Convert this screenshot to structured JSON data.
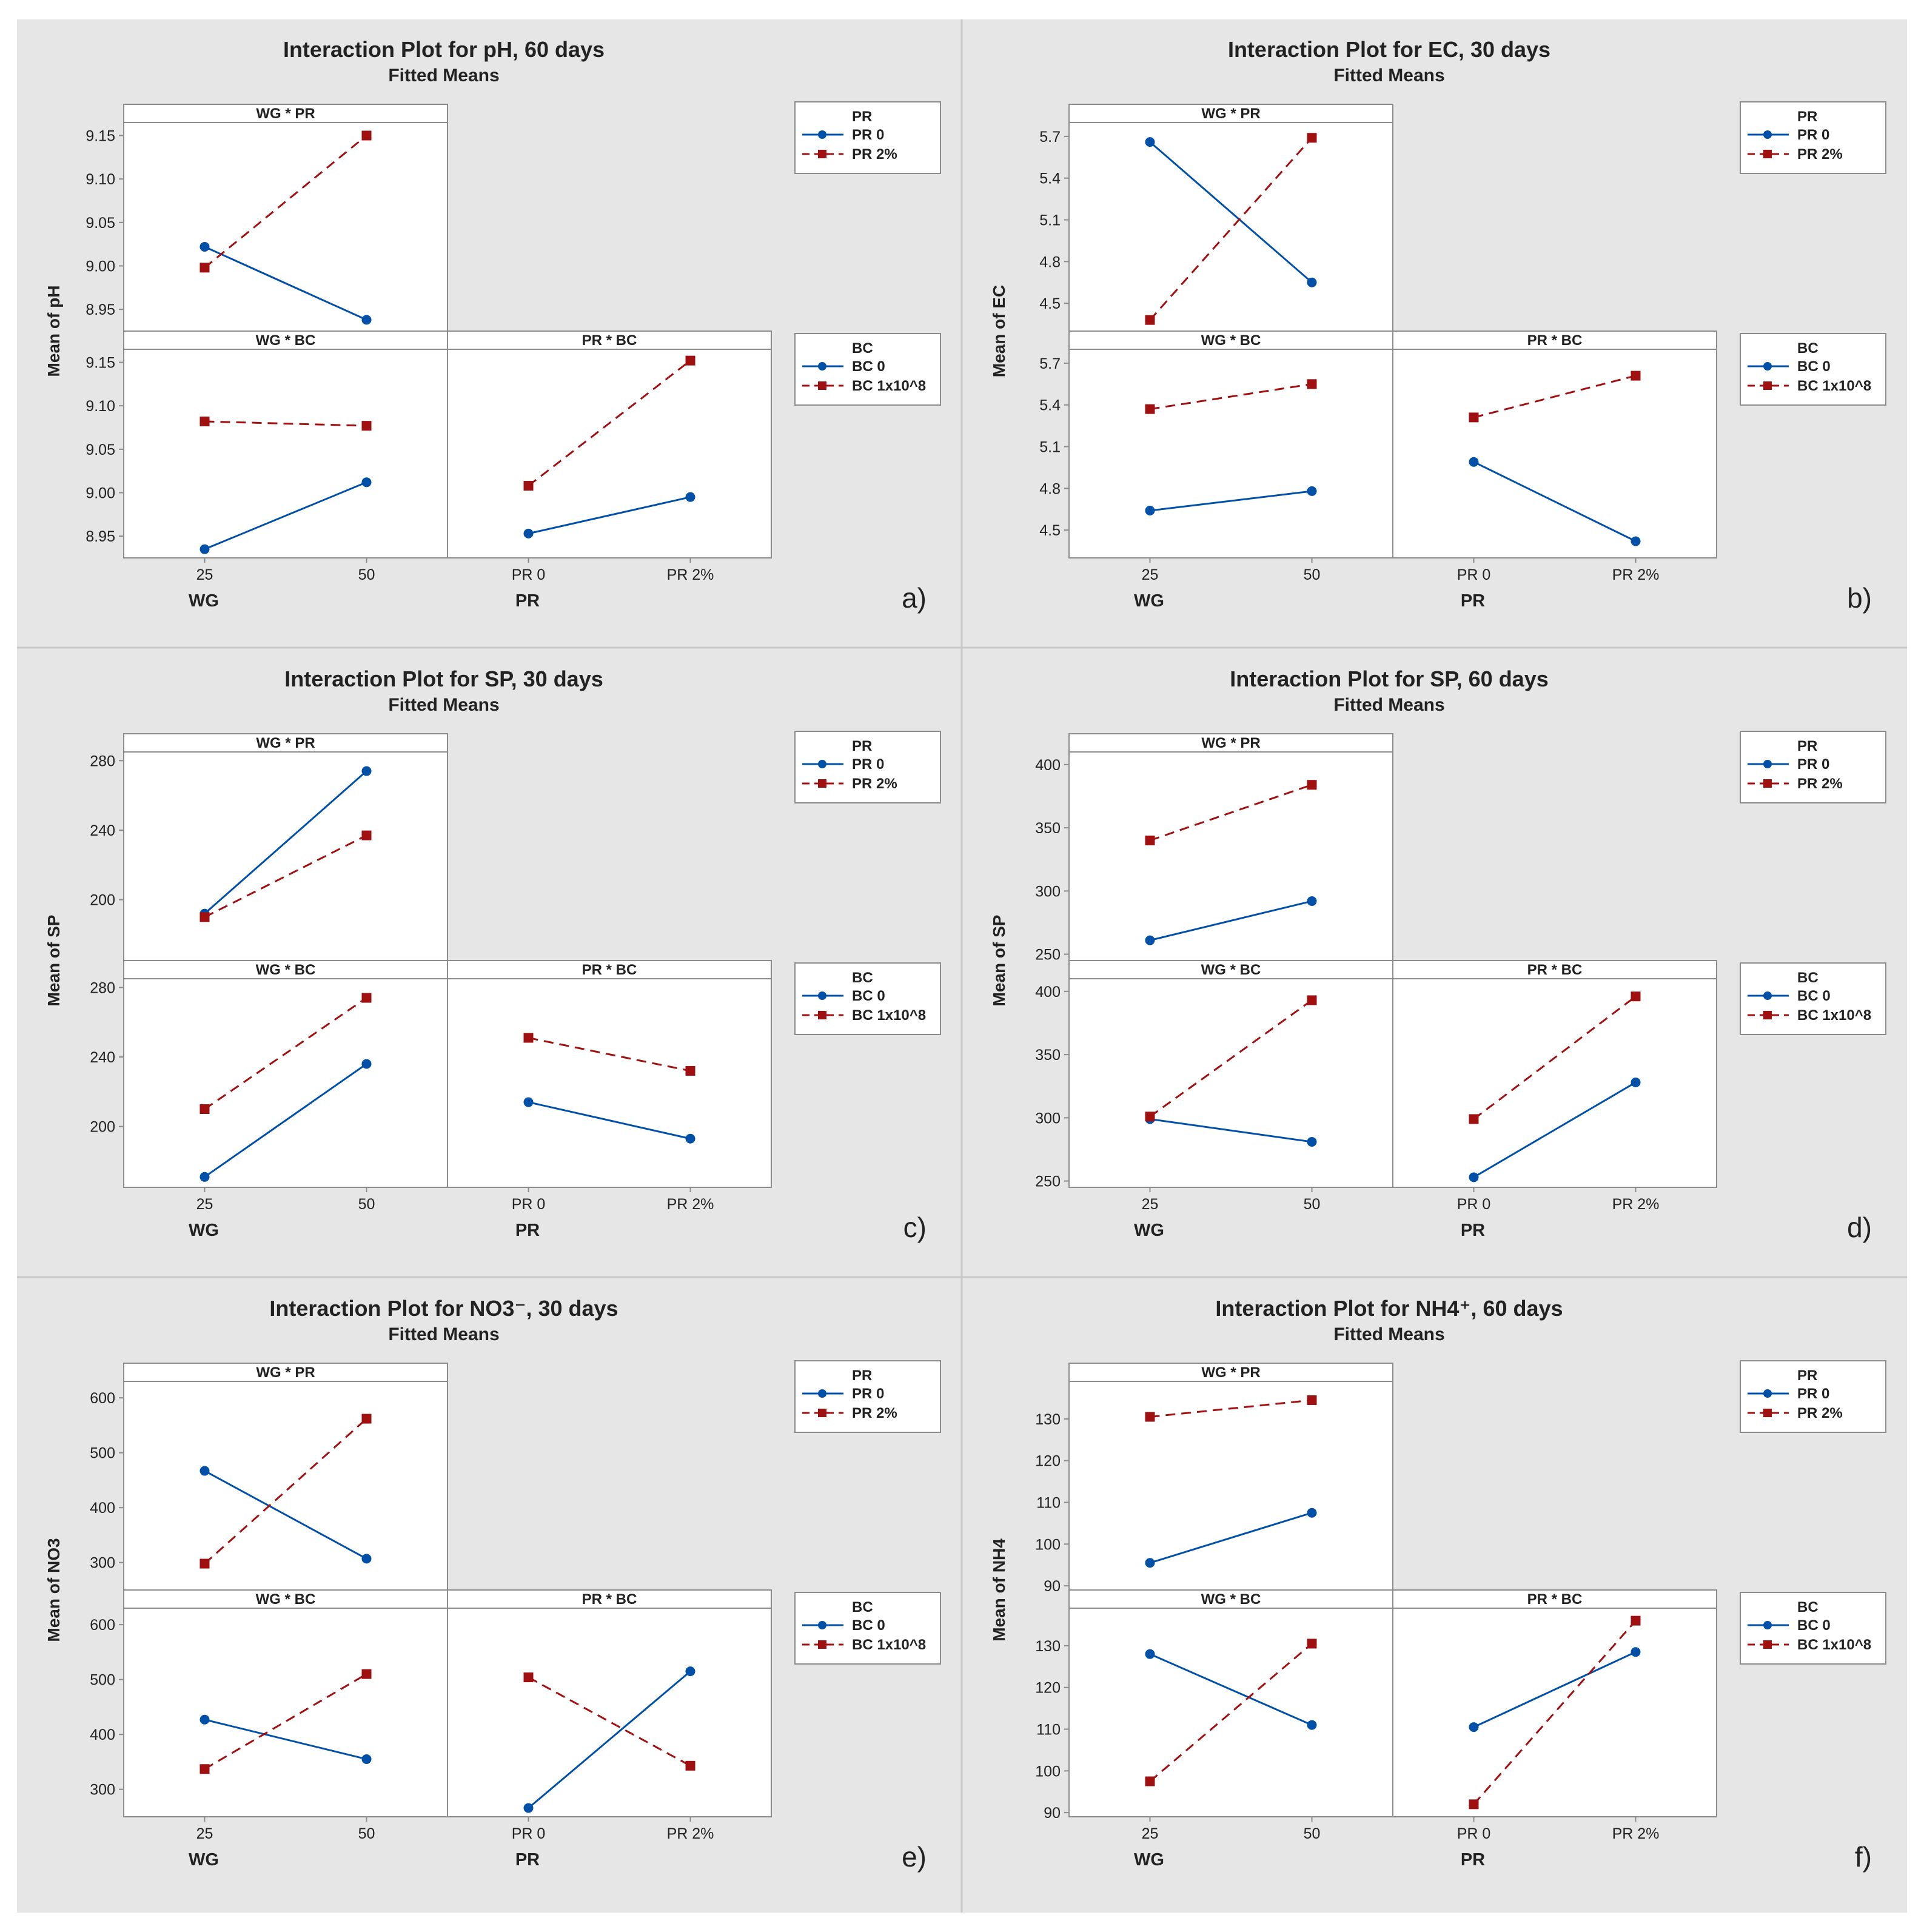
{
  "colors": {
    "page_bg": "#ffffff",
    "panel_bg": "#e6e6e6",
    "plot_bg": "#ffffff",
    "divider": "#c8c8c8",
    "axis": "#8c8c8c",
    "text": "#222222",
    "series_a": "#0050a8",
    "series_b": "#a01010"
  },
  "chart_data": [
    {
      "type": "line",
      "tag": "a)",
      "title": "Interaction Plot for pH, 60 days",
      "subtitle": "Fitted Means",
      "ylabel": "Mean of pH",
      "legends": [
        {
          "title": "PR",
          "items": [
            "PR 0",
            "PR 2%"
          ]
        },
        {
          "title": "BC",
          "items": [
            "BC 0",
            "BC 1x10^8"
          ]
        }
      ],
      "subplots": [
        {
          "title": "WG * PR",
          "xlabel": "",
          "categories": [
            "25",
            "50"
          ],
          "ylim": [
            8.925,
            9.165
          ],
          "yticks": [
            8.95,
            9.0,
            9.05,
            9.1,
            9.15
          ],
          "series": [
            {
              "name": "PR 0",
              "values": [
                9.022,
                8.938
              ]
            },
            {
              "name": "PR 2%",
              "values": [
                8.998,
                9.15
              ]
            }
          ]
        },
        {
          "title": "WG * BC",
          "xlabel": "WG",
          "categories": [
            "25",
            "50"
          ],
          "ylim": [
            8.925,
            9.165
          ],
          "yticks": [
            8.95,
            9.0,
            9.05,
            9.1,
            9.15
          ],
          "series": [
            {
              "name": "BC 0",
              "values": [
                8.935,
                9.012
              ]
            },
            {
              "name": "BC 1x10^8",
              "values": [
                9.082,
                9.077
              ]
            }
          ]
        },
        {
          "title": "PR * BC",
          "xlabel": "PR",
          "categories": [
            "PR 0",
            "PR 2%"
          ],
          "ylim": [
            8.925,
            9.165
          ],
          "yticks": [],
          "series": [
            {
              "name": "BC 0",
              "values": [
                8.953,
                8.995
              ]
            },
            {
              "name": "BC 1x10^8",
              "values": [
                9.008,
                9.152
              ]
            }
          ]
        }
      ]
    },
    {
      "type": "line",
      "tag": "b)",
      "title": "Interaction Plot for EC, 30 days",
      "subtitle": "Fitted Means",
      "ylabel": "Mean of EC",
      "legends": [
        {
          "title": "PR",
          "items": [
            "PR 0",
            "PR 2%"
          ]
        },
        {
          "title": "BC",
          "items": [
            "BC 0",
            "BC 1x10^8"
          ]
        }
      ],
      "subplots": [
        {
          "title": "WG * PR",
          "xlabel": "",
          "categories": [
            "25",
            "50"
          ],
          "ylim": [
            4.3,
            5.8
          ],
          "yticks": [
            4.5,
            4.8,
            5.1,
            5.4,
            5.7
          ],
          "series": [
            {
              "name": "PR 0",
              "values": [
                5.66,
                4.65
              ]
            },
            {
              "name": "PR 2%",
              "values": [
                4.38,
                5.69
              ]
            }
          ]
        },
        {
          "title": "WG * BC",
          "xlabel": "WG",
          "categories": [
            "25",
            "50"
          ],
          "ylim": [
            4.3,
            5.8
          ],
          "yticks": [
            4.5,
            4.8,
            5.1,
            5.4,
            5.7
          ],
          "series": [
            {
              "name": "BC 0",
              "values": [
                4.64,
                4.78
              ]
            },
            {
              "name": "BC 1x10^8",
              "values": [
                5.37,
                5.55
              ]
            }
          ]
        },
        {
          "title": "PR * BC",
          "xlabel": "PR",
          "categories": [
            "PR 0",
            "PR 2%"
          ],
          "ylim": [
            4.3,
            5.8
          ],
          "yticks": [],
          "series": [
            {
              "name": "BC 0",
              "values": [
                4.99,
                4.42
              ]
            },
            {
              "name": "BC 1x10^8",
              "values": [
                5.31,
                5.61
              ]
            }
          ]
        }
      ]
    },
    {
      "type": "line",
      "tag": "c)",
      "title": "Interaction Plot for SP, 30 days",
      "subtitle": "Fitted Means",
      "ylabel": "Mean of SP",
      "legends": [
        {
          "title": "PR",
          "items": [
            "PR 0",
            "PR 2%"
          ]
        },
        {
          "title": "BC",
          "items": [
            "BC 0",
            "BC 1x10^8"
          ]
        }
      ],
      "subplots": [
        {
          "title": "WG * PR",
          "xlabel": "",
          "categories": [
            "25",
            "50"
          ],
          "ylim": [
            165,
            285
          ],
          "yticks": [
            200,
            240,
            280
          ],
          "series": [
            {
              "name": "PR 0",
              "values": [
                192,
                274
              ]
            },
            {
              "name": "PR 2%",
              "values": [
                190,
                237
              ]
            }
          ]
        },
        {
          "title": "WG * BC",
          "xlabel": "WG",
          "categories": [
            "25",
            "50"
          ],
          "ylim": [
            165,
            285
          ],
          "yticks": [
            200,
            240,
            280
          ],
          "series": [
            {
              "name": "BC 0",
              "values": [
                171,
                236
              ]
            },
            {
              "name": "BC 1x10^8",
              "values": [
                210,
                274
              ]
            }
          ]
        },
        {
          "title": "PR * BC",
          "xlabel": "PR",
          "categories": [
            "PR 0",
            "PR 2%"
          ],
          "ylim": [
            165,
            285
          ],
          "yticks": [],
          "series": [
            {
              "name": "BC 0",
              "values": [
                214,
                193
              ]
            },
            {
              "name": "BC 1x10^8",
              "values": [
                251,
                232
              ]
            }
          ]
        }
      ]
    },
    {
      "type": "line",
      "tag": "d)",
      "title": "Interaction Plot for SP, 60 days",
      "subtitle": "Fitted Means",
      "ylabel": "Mean of SP",
      "legends": [
        {
          "title": "PR",
          "items": [
            "PR 0",
            "PR 2%"
          ]
        },
        {
          "title": "BC",
          "items": [
            "BC 0",
            "BC 1x10^8"
          ]
        }
      ],
      "subplots": [
        {
          "title": "WG * PR",
          "xlabel": "",
          "categories": [
            "25",
            "50"
          ],
          "ylim": [
            245,
            410
          ],
          "yticks": [
            250,
            300,
            350,
            400
          ],
          "series": [
            {
              "name": "PR 0",
              "values": [
                261,
                292
              ]
            },
            {
              "name": "PR 2%",
              "values": [
                340,
                384
              ]
            }
          ]
        },
        {
          "title": "WG * BC",
          "xlabel": "WG",
          "categories": [
            "25",
            "50"
          ],
          "ylim": [
            245,
            410
          ],
          "yticks": [
            250,
            300,
            350,
            400
          ],
          "series": [
            {
              "name": "BC 0",
              "values": [
                299,
                281
              ]
            },
            {
              "name": "BC 1x10^8",
              "values": [
                301,
                393
              ]
            }
          ]
        },
        {
          "title": "PR * BC",
          "xlabel": "PR",
          "categories": [
            "PR 0",
            "PR 2%"
          ],
          "ylim": [
            245,
            410
          ],
          "yticks": [],
          "series": [
            {
              "name": "BC 0",
              "values": [
                253,
                328
              ]
            },
            {
              "name": "BC 1x10^8",
              "values": [
                299,
                396
              ]
            }
          ]
        }
      ]
    },
    {
      "type": "line",
      "tag": "e)",
      "title": "Interaction Plot for NO3⁻, 30 days",
      "subtitle": "Fitted Means",
      "ylabel": "Mean of NO3",
      "legends": [
        {
          "title": "PR",
          "items": [
            "PR 0",
            "PR 2%"
          ]
        },
        {
          "title": "BC",
          "items": [
            "BC 0",
            "BC 1x10^8"
          ]
        }
      ],
      "subplots": [
        {
          "title": "WG * PR",
          "xlabel": "",
          "categories": [
            "25",
            "50"
          ],
          "ylim": [
            250,
            630
          ],
          "yticks": [
            300,
            400,
            500,
            600
          ],
          "series": [
            {
              "name": "PR 0",
              "values": [
                467,
                307
              ]
            },
            {
              "name": "PR 2%",
              "values": [
                298,
                562
              ]
            }
          ]
        },
        {
          "title": "WG * BC",
          "xlabel": "WG",
          "categories": [
            "25",
            "50"
          ],
          "ylim": [
            250,
            630
          ],
          "yticks": [
            300,
            400,
            500,
            600
          ],
          "series": [
            {
              "name": "BC 0",
              "values": [
                427,
                355
              ]
            },
            {
              "name": "BC 1x10^8",
              "values": [
                337,
                510
              ]
            }
          ]
        },
        {
          "title": "PR * BC",
          "xlabel": "PR",
          "categories": [
            "PR 0",
            "PR 2%"
          ],
          "ylim": [
            250,
            630
          ],
          "yticks": [],
          "series": [
            {
              "name": "BC 0",
              "values": [
                266,
                515
              ]
            },
            {
              "name": "BC 1x10^8",
              "values": [
                504,
                343
              ]
            }
          ]
        }
      ]
    },
    {
      "type": "line",
      "tag": "f)",
      "title": "Interaction Plot for NH4⁺, 60 days",
      "subtitle": "Fitted Means",
      "ylabel": "Mean of NH4",
      "legends": [
        {
          "title": "PR",
          "items": [
            "PR 0",
            "PR 2%"
          ]
        },
        {
          "title": "BC",
          "items": [
            "BC 0",
            "BC 1x10^8"
          ]
        }
      ],
      "subplots": [
        {
          "title": "WG * PR",
          "xlabel": "",
          "categories": [
            "25",
            "50"
          ],
          "ylim": [
            89,
            139
          ],
          "yticks": [
            90,
            100,
            110,
            120,
            130
          ],
          "series": [
            {
              "name": "PR 0",
              "values": [
                95.5,
                107.5
              ]
            },
            {
              "name": "PR 2%",
              "values": [
                130.5,
                134.5
              ]
            }
          ]
        },
        {
          "title": "WG * BC",
          "xlabel": "WG",
          "categories": [
            "25",
            "50"
          ],
          "ylim": [
            89,
            139
          ],
          "yticks": [
            90,
            100,
            110,
            120,
            130
          ],
          "series": [
            {
              "name": "BC 0",
              "values": [
                128.0,
                111.0
              ]
            },
            {
              "name": "BC 1x10^8",
              "values": [
                97.5,
                130.5
              ]
            }
          ]
        },
        {
          "title": "PR * BC",
          "xlabel": "PR",
          "categories": [
            "PR 0",
            "PR 2%"
          ],
          "ylim": [
            89,
            139
          ],
          "yticks": [],
          "series": [
            {
              "name": "BC 0",
              "values": [
                110.5,
                128.5
              ]
            },
            {
              "name": "BC 1x10^8",
              "values": [
                92.0,
                136.0
              ]
            }
          ]
        }
      ]
    }
  ]
}
